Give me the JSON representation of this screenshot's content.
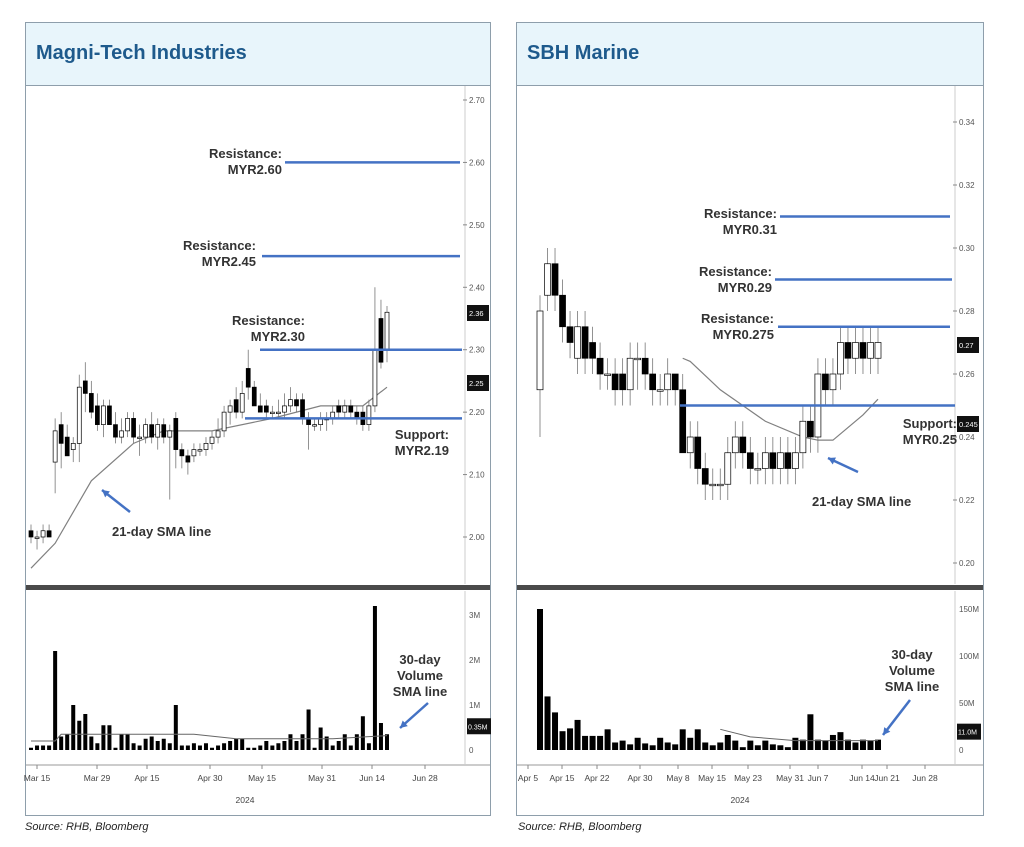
{
  "colors": {
    "title": "#1e5a8c",
    "header_bg": "#e8f5fb",
    "level_line": "#4472c4",
    "arrow": "#4472c4",
    "candle_down": "#000000",
    "candle_up": "#ffffff",
    "sma_line": "#808080"
  },
  "source_note": "Source: RHB, Bloomberg",
  "chart_data": [
    {
      "type": "candlestick",
      "title": "Magni-Tech Industries",
      "currency": "MYR",
      "price_axis": {
        "ticks": [
          "2.70",
          "2.60",
          "2.50",
          "2.40",
          "2.30",
          "2.20",
          "2.10",
          "2.00"
        ],
        "ylim": [
          1.95,
          2.72
        ],
        "last_price_label": "2.36",
        "sma_label": "2.25"
      },
      "volume_axis": {
        "ticks": [
          "3M",
          "2M",
          "1M",
          "0"
        ],
        "tick_values": [
          3,
          2,
          1,
          0
        ],
        "ylim": [
          0,
          3.4
        ],
        "unit": "M",
        "last_label": "0.35M"
      },
      "x_ticks": [
        "Mar 15",
        "Mar 29",
        "Apr 15",
        "Apr 30",
        "May 15",
        "May 31",
        "Jun 14",
        "Jun 28"
      ],
      "x_year": "2024",
      "candles_ohlc": [
        [
          2.01,
          2.02,
          1.99,
          2.0
        ],
        [
          2.0,
          2.01,
          1.98,
          2.0
        ],
        [
          2.0,
          2.02,
          1.99,
          2.01
        ],
        [
          2.01,
          2.02,
          2.0,
          2.0
        ],
        [
          2.12,
          2.19,
          2.07,
          2.17
        ],
        [
          2.18,
          2.2,
          2.11,
          2.15
        ],
        [
          2.16,
          2.18,
          2.14,
          2.13
        ],
        [
          2.14,
          2.16,
          2.12,
          2.15
        ],
        [
          2.15,
          2.26,
          2.12,
          2.24
        ],
        [
          2.25,
          2.28,
          2.2,
          2.23
        ],
        [
          2.23,
          2.25,
          2.19,
          2.2
        ],
        [
          2.21,
          2.23,
          2.17,
          2.18
        ],
        [
          2.18,
          2.22,
          2.16,
          2.21
        ],
        [
          2.21,
          2.22,
          2.18,
          2.18
        ],
        [
          2.18,
          2.2,
          2.15,
          2.16
        ],
        [
          2.16,
          2.19,
          2.15,
          2.17
        ],
        [
          2.17,
          2.2,
          2.16,
          2.19
        ],
        [
          2.19,
          2.2,
          2.15,
          2.16
        ],
        [
          2.16,
          2.18,
          2.13,
          2.16
        ],
        [
          2.16,
          2.19,
          2.15,
          2.18
        ],
        [
          2.18,
          2.2,
          2.15,
          2.16
        ],
        [
          2.16,
          2.19,
          2.14,
          2.18
        ],
        [
          2.18,
          2.19,
          2.15,
          2.16
        ],
        [
          2.16,
          2.18,
          2.06,
          2.17
        ],
        [
          2.19,
          2.2,
          2.11,
          2.14
        ],
        [
          2.14,
          2.15,
          2.11,
          2.13
        ],
        [
          2.13,
          2.14,
          2.1,
          2.12
        ],
        [
          2.13,
          2.15,
          2.12,
          2.14
        ],
        [
          2.14,
          2.15,
          2.13,
          2.14
        ],
        [
          2.14,
          2.16,
          2.13,
          2.15
        ],
        [
          2.15,
          2.17,
          2.14,
          2.16
        ],
        [
          2.16,
          2.19,
          2.15,
          2.17
        ],
        [
          2.17,
          2.21,
          2.16,
          2.2
        ],
        [
          2.2,
          2.22,
          2.18,
          2.21
        ],
        [
          2.22,
          2.24,
          2.19,
          2.2
        ],
        [
          2.2,
          2.25,
          2.19,
          2.23
        ],
        [
          2.27,
          2.3,
          2.22,
          2.24
        ],
        [
          2.24,
          2.25,
          2.21,
          2.21
        ],
        [
          2.21,
          2.23,
          2.2,
          2.2
        ],
        [
          2.21,
          2.22,
          2.19,
          2.2
        ],
        [
          2.2,
          2.21,
          2.19,
          2.2
        ],
        [
          2.2,
          2.22,
          2.19,
          2.2
        ],
        [
          2.2,
          2.23,
          2.19,
          2.21
        ],
        [
          2.21,
          2.24,
          2.2,
          2.22
        ],
        [
          2.22,
          2.23,
          2.2,
          2.21
        ],
        [
          2.22,
          2.23,
          2.18,
          2.19
        ],
        [
          2.19,
          2.2,
          2.14,
          2.18
        ],
        [
          2.18,
          2.19,
          2.17,
          2.18
        ],
        [
          2.18,
          2.2,
          2.17,
          2.19
        ],
        [
          2.19,
          2.2,
          2.17,
          2.19
        ],
        [
          2.19,
          2.21,
          2.18,
          2.2
        ],
        [
          2.21,
          2.22,
          2.19,
          2.2
        ],
        [
          2.2,
          2.22,
          2.19,
          2.21
        ],
        [
          2.21,
          2.22,
          2.19,
          2.2
        ],
        [
          2.2,
          2.21,
          2.18,
          2.19
        ],
        [
          2.2,
          2.21,
          2.17,
          2.18
        ],
        [
          2.18,
          2.22,
          2.17,
          2.21
        ],
        [
          2.21,
          2.4,
          2.2,
          2.3
        ],
        [
          2.35,
          2.38,
          2.27,
          2.28
        ],
        [
          2.3,
          2.37,
          2.28,
          2.36
        ]
      ],
      "sma21_points": [
        [
          0,
          1.95
        ],
        [
          4,
          1.99
        ],
        [
          10,
          2.09
        ],
        [
          17,
          2.15
        ],
        [
          22,
          2.17
        ],
        [
          30,
          2.17
        ],
        [
          40,
          2.19
        ],
        [
          48,
          2.21
        ],
        [
          55,
          2.21
        ],
        [
          59,
          2.24
        ]
      ],
      "volumes_m": [
        0.05,
        0.1,
        0.1,
        0.1,
        2.2,
        0.3,
        0.35,
        1.0,
        0.65,
        0.8,
        0.3,
        0.15,
        0.55,
        0.55,
        0.05,
        0.35,
        0.35,
        0.15,
        0.1,
        0.25,
        0.3,
        0.2,
        0.25,
        0.15,
        1.0,
        0.1,
        0.1,
        0.15,
        0.1,
        0.15,
        0.05,
        0.1,
        0.15,
        0.2,
        0.25,
        0.25,
        0.05,
        0.05,
        0.1,
        0.2,
        0.1,
        0.15,
        0.2,
        0.35,
        0.2,
        0.35,
        0.9,
        0.05,
        0.5,
        0.3,
        0.1,
        0.2,
        0.35,
        0.1,
        0.35,
        0.75,
        0.15,
        3.2,
        0.6,
        0.35
      ],
      "volume_sma30_points": [
        [
          0,
          0.2
        ],
        [
          4,
          0.2
        ],
        [
          5,
          0.35
        ],
        [
          27,
          0.35
        ],
        [
          34,
          0.25
        ],
        [
          50,
          0.25
        ],
        [
          59,
          0.32
        ]
      ],
      "levels": [
        {
          "kind": "resistance",
          "label": "Resistance:",
          "value_label": "MYR2.60",
          "value": 2.6
        },
        {
          "kind": "resistance",
          "label": "Resistance:",
          "value_label": "MYR2.45",
          "value": 2.45
        },
        {
          "kind": "resistance",
          "label": "Resistance:",
          "value_label": "MYR2.30",
          "value": 2.3
        },
        {
          "kind": "support",
          "label": "Support:",
          "value_label": "MYR2.19",
          "value": 2.19
        }
      ],
      "annotations": {
        "sma": "21-day SMA line",
        "vol_sma": [
          "30-day",
          "Volume",
          "SMA line"
        ]
      }
    },
    {
      "type": "candlestick",
      "title": "SBH Marine",
      "currency": "MYR",
      "price_axis": {
        "ticks": [
          "0.34",
          "0.32",
          "0.30",
          "0.28",
          "0.26",
          "0.24",
          "0.22",
          "0.20"
        ],
        "ylim": [
          0.199,
          0.36
        ],
        "last_price_label": "0.27",
        "sma_label": "0.245"
      },
      "volume_axis": {
        "ticks": [
          "150M",
          "100M",
          "50M",
          "0"
        ],
        "tick_values": [
          150,
          100,
          50,
          0
        ],
        "ylim": [
          0,
          160
        ],
        "unit": "M",
        "last_label": "11.0M"
      },
      "x_ticks": [
        "Apr 5",
        "Apr 15",
        "Apr 22",
        "Apr 30",
        "May 8",
        "May 15",
        "May 23",
        "May 31",
        "Jun 7",
        "Jun 14",
        "Jun 21",
        "Jun 28"
      ],
      "x_year": "2024",
      "candles_ohlc": [
        [
          0.255,
          0.285,
          0.24,
          0.28
        ],
        [
          0.285,
          0.3,
          0.28,
          0.295
        ],
        [
          0.295,
          0.3,
          0.28,
          0.285
        ],
        [
          0.285,
          0.29,
          0.27,
          0.275
        ],
        [
          0.275,
          0.28,
          0.265,
          0.27
        ],
        [
          0.265,
          0.28,
          0.26,
          0.275
        ],
        [
          0.275,
          0.28,
          0.26,
          0.265
        ],
        [
          0.27,
          0.275,
          0.26,
          0.265
        ],
        [
          0.265,
          0.27,
          0.255,
          0.26
        ],
        [
          0.26,
          0.265,
          0.255,
          0.26
        ],
        [
          0.26,
          0.265,
          0.25,
          0.255
        ],
        [
          0.26,
          0.265,
          0.25,
          0.255
        ],
        [
          0.255,
          0.27,
          0.25,
          0.265
        ],
        [
          0.265,
          0.27,
          0.255,
          0.265
        ],
        [
          0.265,
          0.27,
          0.255,
          0.26
        ],
        [
          0.26,
          0.265,
          0.25,
          0.255
        ],
        [
          0.255,
          0.26,
          0.25,
          0.255
        ],
        [
          0.255,
          0.265,
          0.25,
          0.26
        ],
        [
          0.26,
          0.26,
          0.25,
          0.255
        ],
        [
          0.255,
          0.26,
          0.235,
          0.235
        ],
        [
          0.235,
          0.245,
          0.23,
          0.24
        ],
        [
          0.24,
          0.245,
          0.225,
          0.23
        ],
        [
          0.23,
          0.235,
          0.22,
          0.225
        ],
        [
          0.225,
          0.23,
          0.22,
          0.225
        ],
        [
          0.225,
          0.23,
          0.22,
          0.225
        ],
        [
          0.225,
          0.24,
          0.22,
          0.235
        ],
        [
          0.235,
          0.245,
          0.23,
          0.24
        ],
        [
          0.24,
          0.245,
          0.23,
          0.235
        ],
        [
          0.235,
          0.24,
          0.225,
          0.23
        ],
        [
          0.23,
          0.235,
          0.225,
          0.23
        ],
        [
          0.23,
          0.24,
          0.225,
          0.235
        ],
        [
          0.235,
          0.24,
          0.225,
          0.23
        ],
        [
          0.23,
          0.24,
          0.225,
          0.235
        ],
        [
          0.235,
          0.24,
          0.225,
          0.23
        ],
        [
          0.23,
          0.24,
          0.225,
          0.235
        ],
        [
          0.235,
          0.25,
          0.23,
          0.245
        ],
        [
          0.245,
          0.25,
          0.235,
          0.24
        ],
        [
          0.24,
          0.265,
          0.235,
          0.26
        ],
        [
          0.26,
          0.265,
          0.25,
          0.255
        ],
        [
          0.255,
          0.265,
          0.25,
          0.26
        ],
        [
          0.26,
          0.275,
          0.255,
          0.27
        ],
        [
          0.27,
          0.275,
          0.26,
          0.265
        ],
        [
          0.265,
          0.275,
          0.26,
          0.27
        ],
        [
          0.27,
          0.275,
          0.26,
          0.265
        ],
        [
          0.265,
          0.275,
          0.26,
          0.27
        ],
        [
          0.265,
          0.275,
          0.26,
          0.27
        ]
      ],
      "sma21_points": [
        [
          19,
          0.265
        ],
        [
          20,
          0.264
        ],
        [
          24,
          0.255
        ],
        [
          30,
          0.245
        ],
        [
          35,
          0.24
        ],
        [
          37,
          0.239
        ],
        [
          39,
          0.239
        ],
        [
          43,
          0.247
        ],
        [
          45,
          0.252
        ]
      ],
      "volumes_m": [
        150,
        57,
        40,
        20,
        23,
        32,
        15,
        15,
        15,
        22,
        8,
        10,
        6,
        13,
        7,
        5,
        13,
        8,
        6,
        22,
        13,
        22,
        8,
        5,
        8,
        16,
        10,
        3,
        10,
        5,
        10,
        6,
        5,
        3,
        13,
        11,
        38,
        11,
        10,
        16,
        19,
        11,
        8,
        11,
        10,
        11
      ],
      "volume_sma30_points": [
        [
          24,
          22
        ],
        [
          28,
          14
        ],
        [
          34,
          10
        ],
        [
          45,
          10
        ]
      ],
      "levels": [
        {
          "kind": "resistance",
          "label": "Resistance:",
          "value_label": "MYR0.31",
          "value": 0.31
        },
        {
          "kind": "resistance",
          "label": "Resistance:",
          "value_label": "MYR0.29",
          "value": 0.29
        },
        {
          "kind": "resistance",
          "label": "Resistance:",
          "value_label": "MYR0.275",
          "value": 0.275
        },
        {
          "kind": "support",
          "label": "Support:",
          "value_label": "MYR0.25",
          "value": 0.25
        }
      ],
      "annotations": {
        "sma": "21-day SMA line",
        "vol_sma": [
          "30-day",
          "Volume",
          "SMA line"
        ]
      }
    }
  ]
}
